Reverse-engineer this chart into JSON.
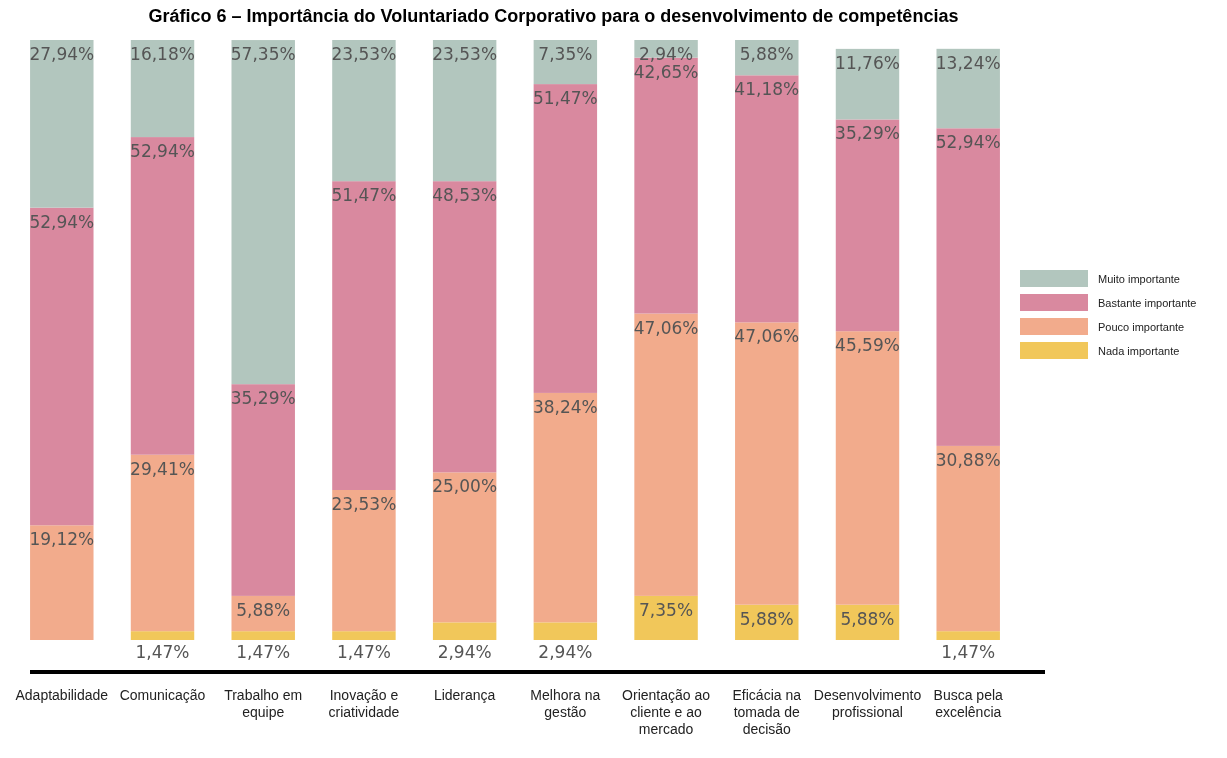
{
  "chart_data": {
    "type": "bar",
    "stacked": true,
    "title": "Gráfico 6 – Importância do Voluntariado Corporativo para o desenvolvimento de competências",
    "categories": [
      "Adaptabilidade",
      "Comunicação",
      "Trabalho em equipe",
      "Inovação e criatividade",
      "Liderança",
      "Melhora na gestão",
      "Orientação ao cliente e ao mercado",
      "Eficácia na tomada de decisão",
      "Desenvolvimento profissional",
      "Busca pela excelência"
    ],
    "ylim": [
      0,
      100
    ],
    "legend": "right",
    "series": [
      {
        "name": "Nada importante",
        "color": "#f1c75a",
        "values": [
          null,
          1.47,
          1.47,
          1.47,
          2.94,
          2.94,
          7.35,
          5.88,
          5.88,
          1.47
        ],
        "value_labels": [
          null,
          "1,47%",
          "1,47%",
          "1,47%",
          "2,94%",
          "2,94%",
          "7,35%",
          "5,88%",
          "5,88%",
          "1,47%"
        ]
      },
      {
        "name": "Pouco importante",
        "color": "#f2ab8c",
        "values": [
          19.12,
          29.41,
          5.88,
          23.53,
          25.0,
          38.24,
          47.06,
          47.06,
          45.59,
          30.88
        ],
        "value_labels": [
          "19,12%",
          "29,41%",
          "5,88%",
          "23,53%",
          "25,00%",
          "38,24%",
          "47,06%",
          "47,06%",
          "45,59%",
          "30,88%"
        ]
      },
      {
        "name": "Bastante importante",
        "color": "#d9899f",
        "values": [
          52.94,
          52.94,
          35.29,
          51.47,
          48.53,
          51.47,
          42.65,
          41.18,
          35.29,
          52.94
        ],
        "value_labels": [
          "52,94%",
          "52,94%",
          "35,29%",
          "51,47%",
          "48,53%",
          "51,47%",
          "42,65%",
          "41,18%",
          "35,29%",
          "52,94%"
        ]
      },
      {
        "name": "Muito importante",
        "color": "#b2c6be",
        "values": [
          27.94,
          16.18,
          57.35,
          23.53,
          23.53,
          7.35,
          2.94,
          5.88,
          11.76,
          13.24
        ],
        "value_labels": [
          "27,94%",
          "16,18%",
          "57,35%",
          "23,53%",
          "23,53%",
          "7,35%",
          "2,94%",
          "5,88%",
          "11,76%",
          "13,24%"
        ]
      }
    ]
  }
}
